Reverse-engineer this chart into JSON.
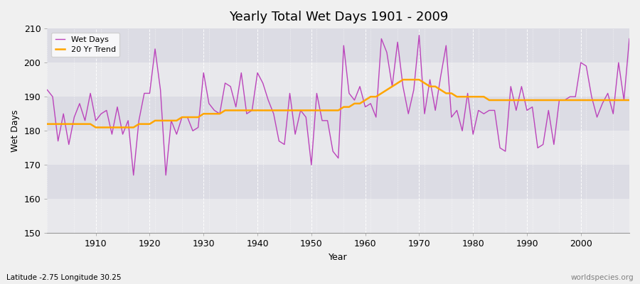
{
  "title": "Yearly Total Wet Days 1901 - 2009",
  "xlabel": "Year",
  "ylabel": "Wet Days",
  "footnote_left": "Latitude -2.75 Longitude 30.25",
  "footnote_right": "worldspecies.org",
  "line_color": "#BB44BB",
  "trend_color": "#FFA500",
  "ylim": [
    150,
    210
  ],
  "xlim": [
    1901,
    2009
  ],
  "yticks": [
    150,
    160,
    170,
    180,
    190,
    200,
    210
  ],
  "xticks": [
    1910,
    1920,
    1930,
    1940,
    1950,
    1960,
    1970,
    1980,
    1990,
    2000
  ],
  "years": [
    1901,
    1902,
    1903,
    1904,
    1905,
    1906,
    1907,
    1908,
    1909,
    1910,
    1911,
    1912,
    1913,
    1914,
    1915,
    1916,
    1917,
    1918,
    1919,
    1920,
    1921,
    1922,
    1923,
    1924,
    1925,
    1926,
    1927,
    1928,
    1929,
    1930,
    1931,
    1932,
    1933,
    1934,
    1935,
    1936,
    1937,
    1938,
    1939,
    1940,
    1941,
    1942,
    1943,
    1944,
    1945,
    1946,
    1947,
    1948,
    1949,
    1950,
    1951,
    1952,
    1953,
    1954,
    1955,
    1956,
    1957,
    1958,
    1959,
    1960,
    1961,
    1962,
    1963,
    1964,
    1965,
    1966,
    1967,
    1968,
    1969,
    1970,
    1971,
    1972,
    1973,
    1974,
    1975,
    1976,
    1977,
    1978,
    1979,
    1980,
    1981,
    1982,
    1983,
    1984,
    1985,
    1986,
    1987,
    1988,
    1989,
    1990,
    1991,
    1992,
    1993,
    1994,
    1995,
    1996,
    1997,
    1998,
    1999,
    2000,
    2001,
    2002,
    2003,
    2004,
    2005,
    2006,
    2007,
    2008,
    2009
  ],
  "wet_days": [
    192,
    190,
    177,
    185,
    176,
    184,
    188,
    183,
    191,
    183,
    185,
    186,
    179,
    187,
    179,
    183,
    167,
    183,
    191,
    191,
    204,
    192,
    167,
    183,
    179,
    184,
    184,
    180,
    181,
    197,
    188,
    186,
    185,
    194,
    193,
    187,
    197,
    185,
    186,
    197,
    194,
    189,
    185,
    177,
    176,
    191,
    179,
    186,
    184,
    170,
    191,
    183,
    183,
    174,
    172,
    205,
    191,
    189,
    193,
    187,
    188,
    184,
    207,
    203,
    193,
    206,
    193,
    185,
    192,
    208,
    185,
    195,
    186,
    196,
    205,
    184,
    186,
    180,
    191,
    179,
    186,
    185,
    186,
    186,
    175,
    174,
    193,
    186,
    193,
    186,
    187,
    175,
    176,
    186,
    176,
    189,
    189,
    190,
    190,
    200,
    199,
    190,
    184,
    188,
    191,
    185,
    200,
    189,
    207
  ],
  "trend": [
    182,
    182,
    182,
    182,
    182,
    182,
    182,
    182,
    182,
    181,
    181,
    181,
    181,
    181,
    181,
    181,
    181,
    182,
    182,
    182,
    183,
    183,
    183,
    183,
    183,
    184,
    184,
    184,
    184,
    185,
    185,
    185,
    185,
    186,
    186,
    186,
    186,
    186,
    186,
    186,
    186,
    186,
    186,
    186,
    186,
    186,
    186,
    186,
    186,
    186,
    186,
    186,
    186,
    186,
    186,
    187,
    187,
    188,
    188,
    189,
    190,
    190,
    191,
    192,
    193,
    194,
    195,
    195,
    195,
    195,
    194,
    193,
    193,
    192,
    191,
    191,
    190,
    190,
    190,
    190,
    190,
    190,
    189,
    189,
    189,
    189,
    189,
    189,
    189,
    189,
    189,
    189,
    189,
    189,
    189,
    189,
    189,
    189,
    189,
    189,
    189,
    189,
    189,
    189,
    189,
    189,
    189,
    189,
    189
  ]
}
